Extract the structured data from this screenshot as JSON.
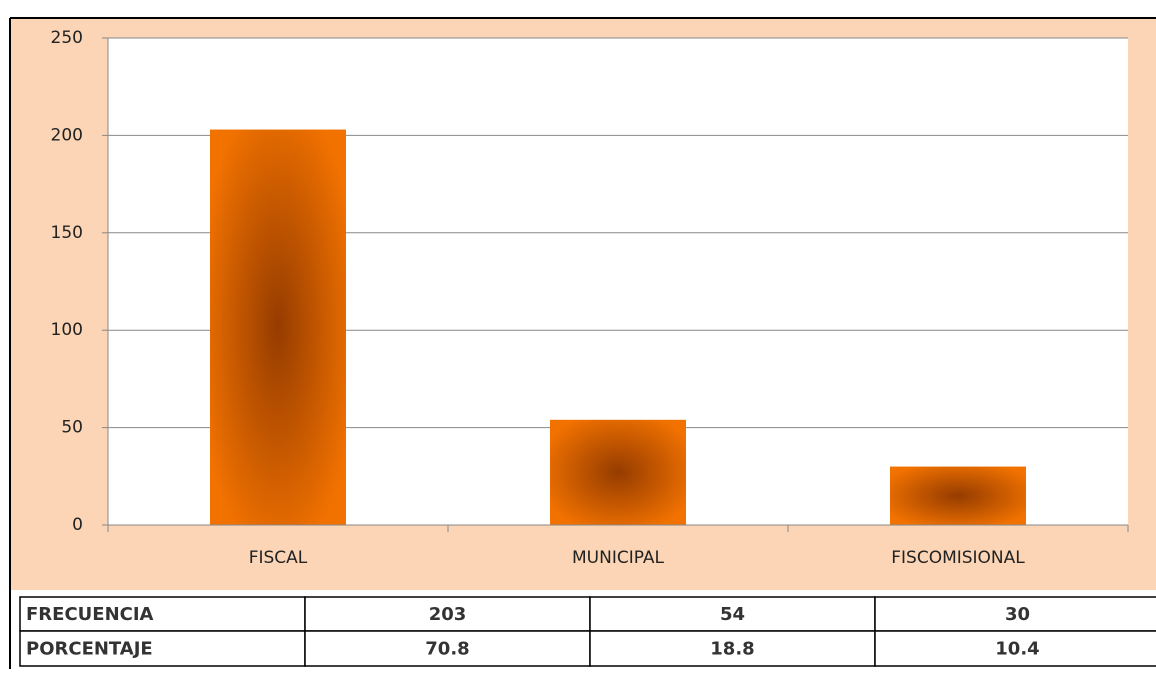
{
  "chart_data": {
    "type": "bar",
    "categories": [
      "FISCAL",
      "MUNICIPAL",
      "FISCOMISIONAL"
    ],
    "values": [
      203,
      54,
      30
    ],
    "color": "#f07000",
    "ylim": [
      0,
      250
    ],
    "yticks": [
      0,
      50,
      100,
      150,
      200,
      250
    ],
    "grid": true
  },
  "table": {
    "rows": [
      [
        "FRECUENCIA",
        203,
        54,
        30
      ],
      [
        "PORCENTAJE",
        70.8,
        18.8,
        10.4
      ]
    ]
  }
}
